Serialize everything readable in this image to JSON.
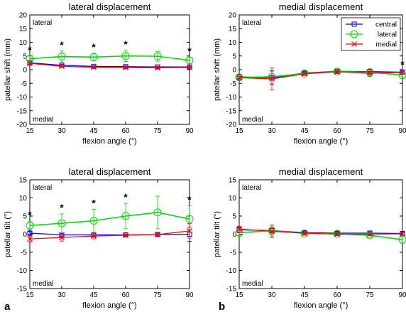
{
  "figure": {
    "panel_labels": [
      "a",
      "b"
    ]
  },
  "legend": {
    "items": [
      {
        "name": "central",
        "color": "#0000ff",
        "marker": "square"
      },
      {
        "name": "lateral",
        "color": "#00dd00",
        "marker": "circle"
      },
      {
        "name": "medial",
        "color": "#ff0000",
        "marker": "x"
      }
    ]
  },
  "chart_data": [
    {
      "type": "line",
      "title": "lateral displacement",
      "xlabel": "flexion angle (°)",
      "ylabel": "patellar shift (mm)",
      "side_top": "lateral",
      "side_bottom": "medial",
      "x": [
        15,
        30,
        45,
        60,
        75,
        90
      ],
      "xlim": [
        15,
        90
      ],
      "ylim": [
        -20,
        20
      ],
      "yticks": [
        -20,
        -15,
        -10,
        -5,
        0,
        5,
        10,
        15,
        20
      ],
      "grid": false,
      "significance_x": [
        15,
        30,
        45,
        60,
        90
      ],
      "significance_mark": "*",
      "series": [
        {
          "name": "central",
          "values": [
            2.5,
            1.6,
            1.2,
            1.1,
            1.0,
            1.0
          ],
          "err": [
            0.4,
            0.4,
            0.3,
            0.3,
            0.3,
            0.3
          ]
        },
        {
          "name": "lateral",
          "values": [
            4.0,
            4.8,
            4.6,
            5.0,
            4.9,
            3.4
          ],
          "err": [
            1.0,
            2.0,
            1.4,
            2.0,
            1.8,
            1.2
          ]
        },
        {
          "name": "medial",
          "values": [
            2.3,
            1.2,
            0.9,
            0.8,
            0.7,
            0.8
          ],
          "err": [
            0.4,
            0.4,
            0.3,
            0.3,
            0.3,
            0.3
          ]
        }
      ]
    },
    {
      "type": "line",
      "title": "medial displacement",
      "xlabel": "flexion angle (°)",
      "ylabel": "patellar shift (mm)",
      "side_top": "lateral",
      "side_bottom": "medial",
      "x": [
        15,
        30,
        45,
        60,
        75,
        90
      ],
      "xlim": [
        15,
        90
      ],
      "ylim": [
        -20,
        20
      ],
      "yticks": [
        -20,
        -15,
        -10,
        -5,
        0,
        5,
        10,
        15,
        20
      ],
      "grid": false,
      "legend_position": "top-right",
      "significance_x": [
        90
      ],
      "significance_mark": "*",
      "series": [
        {
          "name": "central",
          "values": [
            -2.6,
            -3.0,
            -1.2,
            -0.6,
            -0.7,
            -0.9
          ],
          "err": [
            0.8,
            2.5,
            0.6,
            0.4,
            0.6,
            0.4
          ]
        },
        {
          "name": "lateral",
          "values": [
            -2.8,
            -2.6,
            -1.4,
            -0.7,
            -0.9,
            -2.0
          ],
          "err": [
            0.8,
            2.5,
            0.6,
            0.4,
            0.8,
            0.6
          ]
        },
        {
          "name": "medial",
          "values": [
            -2.9,
            -3.4,
            -1.5,
            -0.8,
            -1.3,
            -1.0
          ],
          "err": [
            1.0,
            4.0,
            0.6,
            0.4,
            1.2,
            0.6
          ]
        }
      ]
    },
    {
      "type": "line",
      "title": "lateral displacement",
      "xlabel": "flexion angle (°)",
      "ylabel": "patellar tilt (°)",
      "side_top": "lateral",
      "side_bottom": "medial",
      "x": [
        15,
        30,
        45,
        60,
        75,
        90
      ],
      "xlim": [
        15,
        90
      ],
      "ylim": [
        -15,
        15
      ],
      "yticks": [
        -15,
        -10,
        -5,
        0,
        5,
        10,
        15
      ],
      "grid": false,
      "significance_x": [
        15,
        30,
        45,
        60,
        90
      ],
      "significance_mark": "*",
      "series": [
        {
          "name": "central",
          "values": [
            0.3,
            -0.2,
            -0.2,
            -0.2,
            -0.1,
            0.0
          ],
          "err": [
            0.4,
            0.4,
            0.4,
            0.3,
            0.3,
            2.0
          ]
        },
        {
          "name": "lateral",
          "values": [
            2.4,
            3.0,
            3.7,
            5.0,
            6.0,
            4.2
          ],
          "err": [
            1.2,
            2.6,
            3.2,
            3.5,
            4.5,
            3.6
          ]
        },
        {
          "name": "medial",
          "values": [
            -1.3,
            -0.9,
            -0.5,
            -0.3,
            -0.1,
            0.9
          ],
          "err": [
            0.8,
            1.0,
            0.8,
            0.4,
            0.4,
            2.0
          ]
        }
      ]
    },
    {
      "type": "line",
      "title": "medial displacement",
      "xlabel": "flexion angle (°)",
      "ylabel": "patellar tilt (°)",
      "side_top": "lateral",
      "side_bottom": "medial",
      "x": [
        15,
        30,
        45,
        60,
        75,
        90
      ],
      "xlim": [
        15,
        90
      ],
      "ylim": [
        -15,
        15
      ],
      "yticks": [
        -15,
        -10,
        -5,
        0,
        5,
        10,
        15
      ],
      "grid": false,
      "significance_x": [],
      "significance_mark": "*",
      "series": [
        {
          "name": "central",
          "values": [
            1.2,
            1.0,
            0.4,
            0.3,
            0.3,
            0.2
          ],
          "err": [
            0.8,
            1.0,
            0.5,
            0.4,
            0.4,
            0.4
          ]
        },
        {
          "name": "lateral",
          "values": [
            0.4,
            1.0,
            0.2,
            0.1,
            -0.3,
            -1.5
          ],
          "err": [
            0.8,
            1.5,
            0.5,
            0.4,
            0.6,
            1.0
          ]
        },
        {
          "name": "medial",
          "values": [
            1.4,
            0.8,
            0.3,
            0.0,
            0.0,
            0.1
          ],
          "err": [
            0.8,
            1.7,
            0.5,
            0.4,
            0.4,
            0.4
          ]
        }
      ]
    }
  ]
}
